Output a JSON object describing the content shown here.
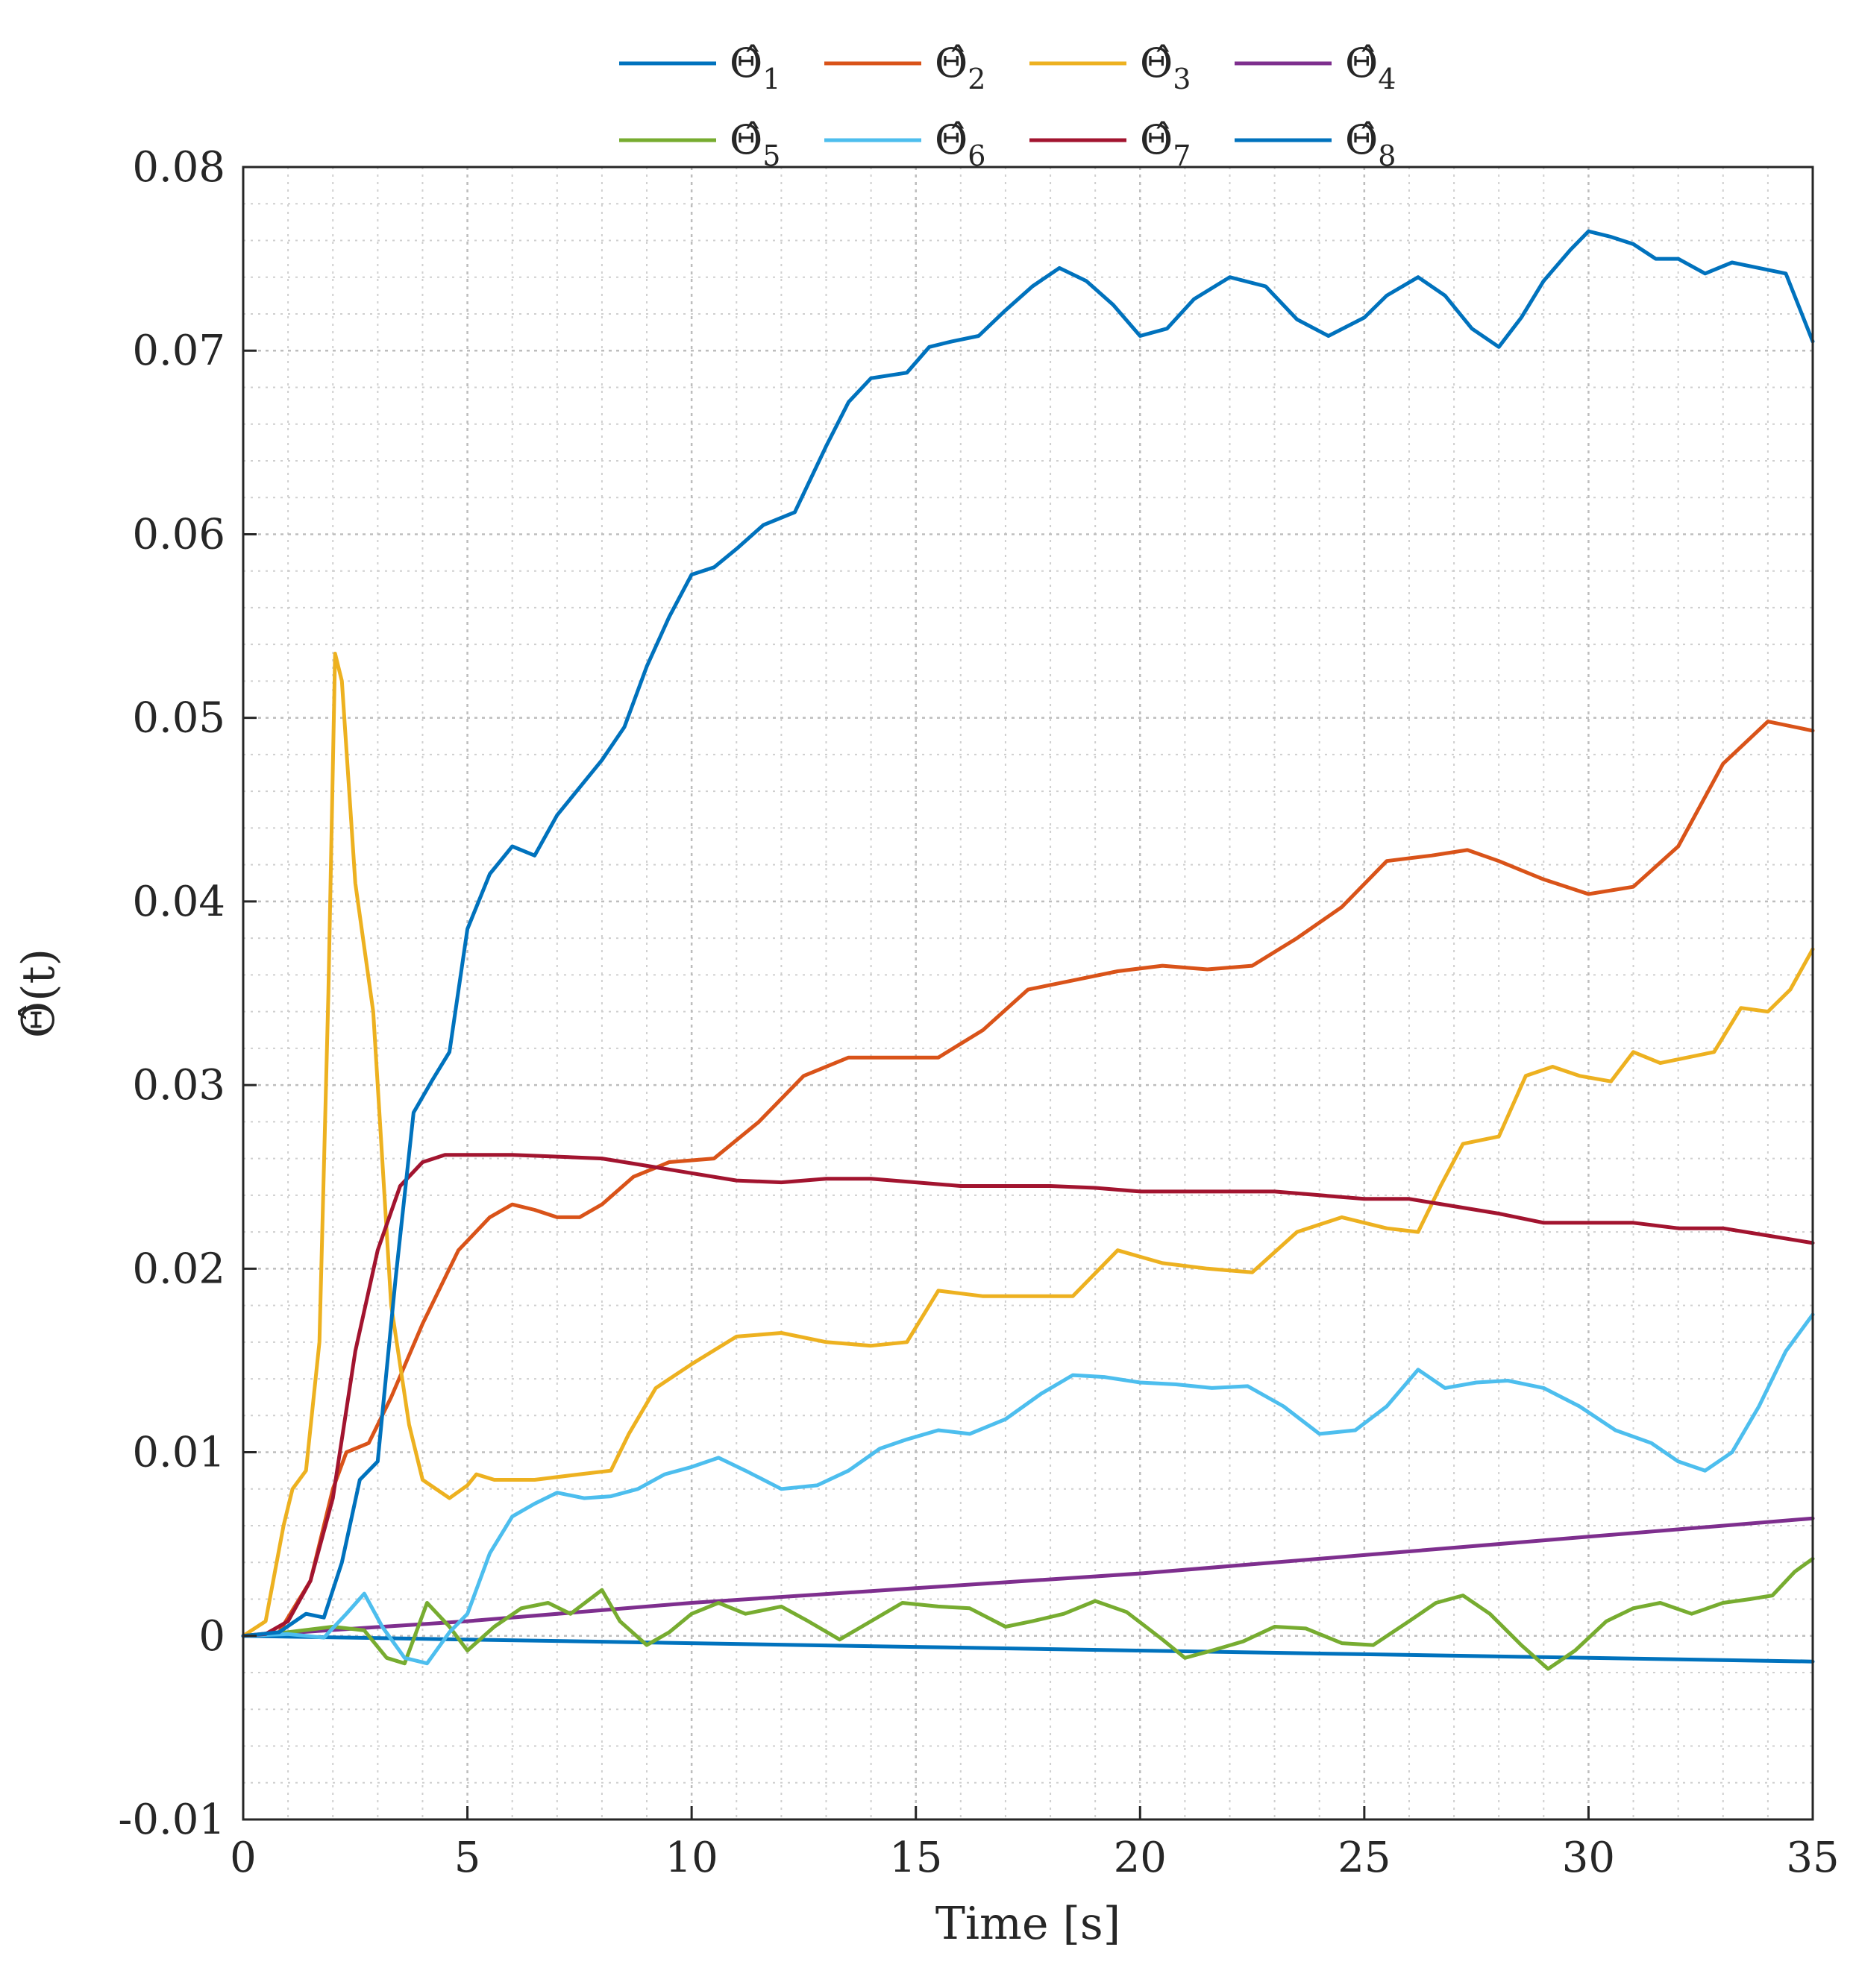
{
  "chart_data": {
    "type": "line",
    "title": "",
    "xlabel": "Time [s]",
    "ylabel": "Θ̂(t)",
    "xlim": [
      0,
      35
    ],
    "ylim": [
      -0.01,
      0.08
    ],
    "xticks": [
      0,
      5,
      10,
      15,
      20,
      25,
      30,
      35
    ],
    "xtick_labels": [
      "0",
      "5",
      "10",
      "15",
      "20",
      "25",
      "30",
      "35"
    ],
    "yticks": [
      -0.01,
      0,
      0.01,
      0.02,
      0.03,
      0.04,
      0.05,
      0.06,
      0.07,
      0.08
    ],
    "ytick_labels": [
      "-0.01",
      "0",
      "0.01",
      "0.02",
      "0.03",
      "0.04",
      "0.05",
      "0.06",
      "0.07",
      "0.08"
    ],
    "grid": true,
    "minor_grid": true,
    "legend_position": "top-center",
    "series": [
      {
        "name": "Θ̂",
        "subscript": "1",
        "color": "#0072BD",
        "x": [
          0,
          5,
          10,
          15,
          20,
          25,
          30,
          35
        ],
        "y": [
          0,
          -0.0002,
          -0.0004,
          -0.0006,
          -0.0008,
          -0.001,
          -0.0012,
          -0.0014
        ]
      },
      {
        "name": "Θ̂",
        "subscript": "2",
        "color": "#D95319",
        "x": [
          0,
          0.8,
          1.5,
          2,
          2.3,
          2.8,
          3.3,
          4,
          4.8,
          5.5,
          6,
          6.5,
          7,
          7.5,
          8,
          8.7,
          9.5,
          10.5,
          11.5,
          12.5,
          13.5,
          14.5,
          15.5,
          16.5,
          17.5,
          18.5,
          19.5,
          20.5,
          21.5,
          22.5,
          23.5,
          24.5,
          25.5,
          26.5,
          27.3,
          28,
          29,
          30,
          31,
          32,
          33,
          34,
          35
        ],
        "y": [
          0,
          0.0002,
          0.003,
          0.008,
          0.01,
          0.0105,
          0.013,
          0.017,
          0.021,
          0.0228,
          0.0235,
          0.0232,
          0.0228,
          0.0228,
          0.0235,
          0.025,
          0.0258,
          0.026,
          0.028,
          0.0305,
          0.0315,
          0.0315,
          0.0315,
          0.033,
          0.0352,
          0.0357,
          0.0362,
          0.0365,
          0.0363,
          0.0365,
          0.038,
          0.0397,
          0.0422,
          0.0425,
          0.0428,
          0.0422,
          0.0412,
          0.0404,
          0.0408,
          0.043,
          0.0475,
          0.0498,
          0.0493
        ]
      },
      {
        "name": "Θ̂",
        "subscript": "3",
        "color": "#EDB120",
        "x": [
          0,
          0.5,
          0.9,
          1.1,
          1.4,
          1.7,
          1.9,
          2.05,
          2.2,
          2.5,
          2.9,
          3.3,
          3.7,
          4,
          4.6,
          5,
          5.2,
          5.6,
          6.5,
          7.5,
          8.2,
          8.6,
          9.2,
          10,
          11,
          12,
          13,
          14,
          14.8,
          15.5,
          16.5,
          17.5,
          18.5,
          19.5,
          20.5,
          21.5,
          22.5,
          23.5,
          24.5,
          25.5,
          26.2,
          26.7,
          27.2,
          28,
          28.6,
          29.2,
          29.8,
          30.5,
          31,
          31.6,
          32.2,
          32.8,
          33.4,
          34,
          34.5,
          35
        ],
        "y": [
          0,
          0.0008,
          0.006,
          0.008,
          0.009,
          0.016,
          0.035,
          0.0535,
          0.052,
          0.041,
          0.034,
          0.018,
          0.0115,
          0.0085,
          0.0075,
          0.0082,
          0.0088,
          0.0085,
          0.0085,
          0.0088,
          0.009,
          0.011,
          0.0135,
          0.0148,
          0.0163,
          0.0165,
          0.016,
          0.0158,
          0.016,
          0.0188,
          0.0185,
          0.0185,
          0.0185,
          0.021,
          0.0203,
          0.02,
          0.0198,
          0.022,
          0.0228,
          0.0222,
          0.022,
          0.0245,
          0.0268,
          0.0272,
          0.0305,
          0.031,
          0.0305,
          0.0302,
          0.0318,
          0.0312,
          0.0315,
          0.0318,
          0.0342,
          0.034,
          0.0352,
          0.0374
        ]
      },
      {
        "name": "Θ̂",
        "subscript": "4",
        "color": "#7E2F8E",
        "x": [
          0,
          5,
          10,
          15,
          20,
          25,
          30,
          35
        ],
        "y": [
          0,
          0.0008,
          0.0018,
          0.0026,
          0.0034,
          0.0044,
          0.0054,
          0.0064
        ]
      },
      {
        "name": "Θ̂",
        "subscript": "5",
        "color": "#77AC30",
        "x": [
          0,
          1,
          2,
          2.7,
          3.2,
          3.6,
          4.1,
          4.6,
          5,
          5.6,
          6.2,
          6.8,
          7.3,
          8,
          8.4,
          9,
          9.5,
          10,
          10.6,
          11.2,
          12,
          12.6,
          13.3,
          14,
          14.7,
          15.5,
          16.2,
          17,
          17.6,
          18.3,
          19,
          19.7,
          20.5,
          21,
          21.6,
          22.3,
          23,
          23.7,
          24.5,
          25.2,
          26,
          26.6,
          27.2,
          27.8,
          28.5,
          29.1,
          29.7,
          30.4,
          31,
          31.6,
          32.3,
          33,
          33.6,
          34.1,
          34.6,
          35
        ],
        "y": [
          0,
          0.0002,
          0.0005,
          0.0003,
          -0.0012,
          -0.0015,
          0.0018,
          0.0005,
          -0.0008,
          0.0005,
          0.0015,
          0.0018,
          0.0012,
          0.0025,
          0.0008,
          -0.0005,
          0.0002,
          0.0012,
          0.0018,
          0.0012,
          0.0016,
          0.0008,
          -0.0002,
          0.0008,
          0.0018,
          0.0016,
          0.0015,
          0.0005,
          0.0008,
          0.0012,
          0.0019,
          0.0013,
          -0.0002,
          -0.0012,
          -0.0008,
          -0.0003,
          0.0005,
          0.0004,
          -0.0004,
          -0.0005,
          0.0008,
          0.0018,
          0.0022,
          0.0012,
          -0.0005,
          -0.0018,
          -0.0008,
          0.0008,
          0.0015,
          0.0018,
          0.0012,
          0.0018,
          0.002,
          0.0022,
          0.0035,
          0.0042
        ]
      },
      {
        "name": "Θ̂",
        "subscript": "6",
        "color": "#4DBEEE",
        "x": [
          0,
          1,
          1.8,
          2.3,
          2.7,
          3.1,
          3.6,
          4.1,
          4.6,
          5,
          5.5,
          6,
          6.5,
          7,
          7.6,
          8.2,
          8.8,
          9.4,
          10,
          10.6,
          11.2,
          12,
          12.8,
          13.5,
          14.2,
          14.8,
          15.5,
          16.2,
          17,
          17.8,
          18.5,
          19.2,
          20,
          20.8,
          21.6,
          22.4,
          23.2,
          24,
          24.8,
          25.5,
          26.2,
          26.8,
          27.5,
          28.2,
          29,
          29.8,
          30.6,
          31.4,
          32,
          32.6,
          33.2,
          33.8,
          34.4,
          35
        ],
        "y": [
          0,
          0.0001,
          -0.0001,
          0.0012,
          0.0023,
          0.0005,
          -0.0012,
          -0.0015,
          0.0002,
          0.0012,
          0.0045,
          0.0065,
          0.0072,
          0.0078,
          0.0075,
          0.0076,
          0.008,
          0.0088,
          0.0092,
          0.0097,
          0.009,
          0.008,
          0.0082,
          0.009,
          0.0102,
          0.0107,
          0.0112,
          0.011,
          0.0118,
          0.0132,
          0.0142,
          0.0141,
          0.0138,
          0.0137,
          0.0135,
          0.0136,
          0.0125,
          0.011,
          0.0112,
          0.0125,
          0.0145,
          0.0135,
          0.0138,
          0.0139,
          0.0135,
          0.0125,
          0.0112,
          0.0105,
          0.0095,
          0.009,
          0.01,
          0.0125,
          0.0155,
          0.0175
        ]
      },
      {
        "name": "Θ̂",
        "subscript": "7",
        "color": "#A2142F",
        "x": [
          0,
          0.5,
          1,
          1.5,
          2,
          2.5,
          3,
          3.5,
          4,
          4.5,
          5,
          6,
          7,
          8,
          9,
          10,
          11,
          12,
          13,
          14,
          15,
          16,
          17,
          18,
          19,
          20,
          21,
          22,
          23,
          24,
          25,
          26,
          27,
          28,
          29,
          30,
          31,
          32,
          33,
          34,
          35
        ],
        "y": [
          0,
          0.0001,
          0.0008,
          0.003,
          0.0075,
          0.0155,
          0.021,
          0.0245,
          0.0258,
          0.0262,
          0.0262,
          0.0262,
          0.0261,
          0.026,
          0.0256,
          0.0252,
          0.0248,
          0.0247,
          0.0249,
          0.0249,
          0.0247,
          0.0245,
          0.0245,
          0.0245,
          0.0244,
          0.0242,
          0.0242,
          0.0242,
          0.0242,
          0.024,
          0.0238,
          0.0238,
          0.0234,
          0.023,
          0.0225,
          0.0225,
          0.0225,
          0.0222,
          0.0222,
          0.0218,
          0.0214
        ]
      },
      {
        "name": "Θ̂",
        "subscript": "8",
        "color": "#0072BD",
        "x": [
          0,
          0.8,
          1.4,
          1.8,
          2.2,
          2.6,
          3,
          3.4,
          3.8,
          4.2,
          4.6,
          5,
          5.5,
          6,
          6.5,
          7,
          7.5,
          8,
          8.5,
          9,
          9.5,
          10,
          10.5,
          11,
          11.6,
          12.3,
          13,
          13.5,
          14,
          14.8,
          15.3,
          15.8,
          16.4,
          17,
          17.6,
          18.2,
          18.8,
          19.4,
          20,
          20.6,
          21.2,
          22,
          22.8,
          23.5,
          24.2,
          25,
          25.5,
          26.2,
          26.8,
          27.4,
          28,
          28.5,
          29,
          29.6,
          30,
          30.5,
          31,
          31.5,
          32,
          32.6,
          33.2,
          33.8,
          34.4,
          35
        ],
        "y": [
          0,
          0.0002,
          0.0012,
          0.001,
          0.004,
          0.0085,
          0.0095,
          0.0195,
          0.0285,
          0.0302,
          0.0318,
          0.0385,
          0.0415,
          0.043,
          0.0425,
          0.0447,
          0.0462,
          0.0477,
          0.0495,
          0.0528,
          0.0555,
          0.0578,
          0.0582,
          0.0592,
          0.0605,
          0.0612,
          0.0648,
          0.0672,
          0.0685,
          0.0688,
          0.0702,
          0.0705,
          0.0708,
          0.0722,
          0.0735,
          0.0745,
          0.0738,
          0.0725,
          0.0708,
          0.0712,
          0.0728,
          0.074,
          0.0735,
          0.0717,
          0.0708,
          0.0718,
          0.073,
          0.074,
          0.073,
          0.0712,
          0.0702,
          0.0718,
          0.0738,
          0.0755,
          0.0765,
          0.0762,
          0.0758,
          0.075,
          0.075,
          0.0742,
          0.0748,
          0.0745,
          0.0742,
          0.0705
        ]
      }
    ]
  }
}
